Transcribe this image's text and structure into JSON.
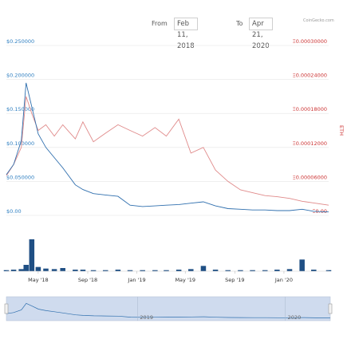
{
  "range_selector": {
    "from_label": "From",
    "from_value": "Feb 11, 2018",
    "to_label": "To",
    "to_value": "Apr 21, 2020"
  },
  "brand": "CoinGecko.com",
  "colors": {
    "usd": "#2f6fae",
    "eth": "#e08a8a",
    "volume": "#1f4f84",
    "navigator": "#cfdbee",
    "grid": "#e6e6e6",
    "left_axis": "#2f7fc1",
    "right_axis": "#cc3333"
  },
  "chart_data": {
    "type": "line",
    "title": "",
    "y_left": {
      "ticks": [
        "$0.250000",
        "$0.200000",
        "$0.150000",
        "$0.100000",
        "$0.050000",
        "$0.00"
      ],
      "range": [
        0,
        0.25
      ]
    },
    "y_right": {
      "label": "ETH",
      "ticks": [
        "Ξ0.00030000",
        "Ξ0.00024000",
        "Ξ0.00018000",
        "Ξ0.00012000",
        "Ξ0.00006000",
        "Ξ0.00"
      ],
      "range": [
        0,
        0.0003
      ]
    },
    "x_ticks": [
      "May '18",
      "Sep '18",
      "Jan '19",
      "May '19",
      "Sep '19",
      "Jan '20"
    ],
    "navigator_labels": [
      "2019",
      "2020"
    ],
    "x": [
      "2018-02-11",
      "2018-03-01",
      "2018-03-20",
      "2018-04-01",
      "2018-04-15",
      "2018-05-01",
      "2018-05-20",
      "2018-06-10",
      "2018-07-01",
      "2018-08-01",
      "2018-08-20",
      "2018-09-15",
      "2018-10-15",
      "2018-11-15",
      "2018-12-15",
      "2019-01-15",
      "2019-02-15",
      "2019-03-15",
      "2019-04-15",
      "2019-05-15",
      "2019-06-15",
      "2019-07-15",
      "2019-08-15",
      "2019-09-15",
      "2019-10-15",
      "2019-11-15",
      "2019-12-15",
      "2020-01-15",
      "2020-02-15",
      "2020-03-15",
      "2020-04-21"
    ],
    "series": [
      {
        "values_usd": [
          0.06,
          0.075,
          0.11,
          0.195,
          0.16,
          0.12,
          0.1,
          0.085,
          0.07,
          0.045,
          0.038,
          0.032,
          0.03,
          0.028,
          0.015,
          0.013,
          0.014,
          0.015,
          0.016,
          0.018,
          0.02,
          0.014,
          0.01,
          0.009,
          0.008,
          0.008,
          0.007,
          0.007,
          0.009,
          0.006,
          0.005
        ]
      },
      {
        "values_eth": [
          7e-05,
          9e-05,
          0.00012,
          0.00021,
          0.00018,
          0.00015,
          0.00016,
          0.00014,
          0.00016,
          0.000135,
          0.000165,
          0.00013,
          0.000145,
          0.00016,
          0.00015,
          0.00014,
          0.000155,
          0.00014,
          0.00017,
          0.00011,
          0.00012,
          8e-05,
          6e-05,
          4.5e-05,
          4e-05,
          3.5e-05,
          3.3e-05,
          3e-05,
          2.5e-05,
          2.2e-05,
          1.8e-05
        ]
      }
    ],
    "volume": [
      2,
      3,
      4,
      12,
      60,
      8,
      5,
      4,
      6,
      3,
      3,
      2,
      2,
      3,
      2,
      2,
      2,
      2,
      3,
      4,
      10,
      3,
      2,
      2,
      2,
      2,
      3,
      4,
      22,
      3,
      2
    ],
    "grid": true
  }
}
